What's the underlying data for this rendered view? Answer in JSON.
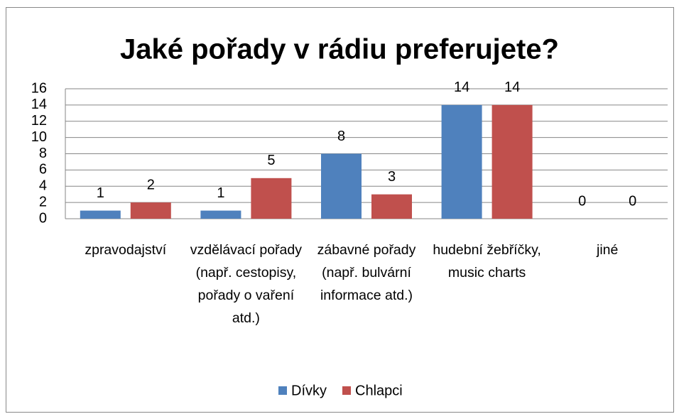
{
  "chart_data": {
    "type": "bar",
    "title": "Jaké pořady v rádiu preferujete?",
    "categories": [
      "zpravodajství",
      "vzdělávací pořady  (např. cestopisy, pořady o vaření atd.)",
      "zábavné pořady (např. bulvární informace atd.)",
      "hudební žebříčky, music charts",
      "jiné"
    ],
    "series": [
      {
        "name": "Dívky",
        "color": "#4f81bd",
        "values": [
          1,
          1,
          8,
          14,
          0
        ]
      },
      {
        "name": "Chlapci",
        "color": "#c0504d",
        "values": [
          2,
          5,
          3,
          14,
          0
        ]
      }
    ],
    "ylim": [
      0,
      16
    ],
    "yticks": [
      0,
      2,
      4,
      6,
      8,
      10,
      12,
      14,
      16
    ],
    "grid": true,
    "legend": "bottom"
  }
}
